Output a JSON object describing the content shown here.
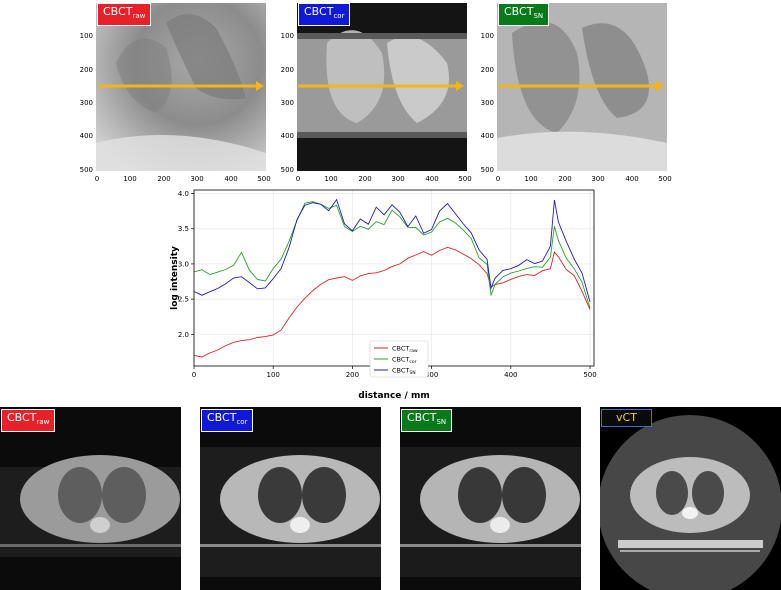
{
  "labels": {
    "raw": {
      "main": "CBCT",
      "sub": "raw"
    },
    "cor": {
      "main": "CBCT",
      "sub": "cor"
    },
    "sn": {
      "main": "CBCT",
      "sub": "SN"
    },
    "vct": {
      "main": "vCT",
      "sub": ""
    }
  },
  "colors": {
    "raw": "#e8202a",
    "cor": "#1019d8",
    "sn": "#087a1a",
    "vct": "#0a0a0a",
    "profile_arrow": "#f2b51c",
    "line_raw": "#d62728",
    "line_cor": "#2ca02c",
    "line_sn": "#1f1fb4"
  },
  "radiograph_axes": {
    "x_ticks": [
      "0",
      "100",
      "200",
      "300",
      "400",
      "500"
    ],
    "y_ticks": [
      "100",
      "200",
      "300",
      "400",
      "500"
    ]
  },
  "chart_data": {
    "type": "line",
    "xlabel": "distance / mm",
    "ylabel": "log intensity",
    "xlim": [
      0,
      505
    ],
    "ylim": [
      1.55,
      4.05
    ],
    "x_ticks": [
      0,
      100,
      200,
      300,
      400,
      500
    ],
    "y_ticks": [
      2.0,
      2.5,
      3.0,
      3.5,
      4.0
    ],
    "grid": true,
    "legend_position": "bottom-center",
    "x": [
      0,
      10,
      20,
      30,
      40,
      50,
      60,
      70,
      80,
      90,
      100,
      110,
      120,
      130,
      140,
      150,
      160,
      170,
      180,
      190,
      200,
      210,
      220,
      230,
      240,
      250,
      260,
      270,
      280,
      290,
      300,
      310,
      320,
      330,
      340,
      350,
      360,
      370,
      375,
      380,
      390,
      400,
      410,
      420,
      430,
      440,
      450,
      455,
      460,
      470,
      480,
      490,
      500
    ],
    "series": [
      {
        "name": "CBCT",
        "name_sub": "raw",
        "color_key": "line_raw",
        "values": [
          1.7,
          1.67,
          1.72,
          1.76,
          1.82,
          1.87,
          1.9,
          1.92,
          1.96,
          1.98,
          2.01,
          2.08,
          2.25,
          2.4,
          2.52,
          2.62,
          2.7,
          2.76,
          2.78,
          2.8,
          2.75,
          2.82,
          2.86,
          2.88,
          2.92,
          2.98,
          3.02,
          3.1,
          3.14,
          3.18,
          3.12,
          3.18,
          3.22,
          3.18,
          3.12,
          3.06,
          2.98,
          2.86,
          2.68,
          2.72,
          2.75,
          2.8,
          2.84,
          2.86,
          2.84,
          2.9,
          2.92,
          3.15,
          3.08,
          2.9,
          2.82,
          2.6,
          2.35
        ]
      },
      {
        "name": "CBCT",
        "name_sub": "cor",
        "color_key": "line_cor",
        "values": [
          2.88,
          2.92,
          2.86,
          2.9,
          2.94,
          3.0,
          3.18,
          2.92,
          2.78,
          2.75,
          2.92,
          3.05,
          3.3,
          3.6,
          3.85,
          3.88,
          3.85,
          3.8,
          3.85,
          3.55,
          3.48,
          3.55,
          3.5,
          3.6,
          3.55,
          3.75,
          3.65,
          3.5,
          3.5,
          3.4,
          3.45,
          3.6,
          3.66,
          3.6,
          3.5,
          3.38,
          3.1,
          3.0,
          2.55,
          2.7,
          2.8,
          2.85,
          2.88,
          2.92,
          2.95,
          2.95,
          3.1,
          3.55,
          3.35,
          3.1,
          2.95,
          2.75,
          2.38
        ]
      },
      {
        "name": "CBCT",
        "name_sub": "SN",
        "color_key": "line_sn",
        "values": [
          2.62,
          2.56,
          2.6,
          2.64,
          2.7,
          2.78,
          2.8,
          2.72,
          2.64,
          2.66,
          2.8,
          2.95,
          3.25,
          3.65,
          3.85,
          3.88,
          3.85,
          3.75,
          3.9,
          3.55,
          3.45,
          3.62,
          3.55,
          3.8,
          3.7,
          3.85,
          3.75,
          3.55,
          3.7,
          3.45,
          3.5,
          3.75,
          3.85,
          3.7,
          3.55,
          3.42,
          3.18,
          3.05,
          2.65,
          2.8,
          2.92,
          2.95,
          3.0,
          3.08,
          3.02,
          3.05,
          3.25,
          3.9,
          3.58,
          3.3,
          3.05,
          2.85,
          2.45
        ]
      }
    ]
  }
}
